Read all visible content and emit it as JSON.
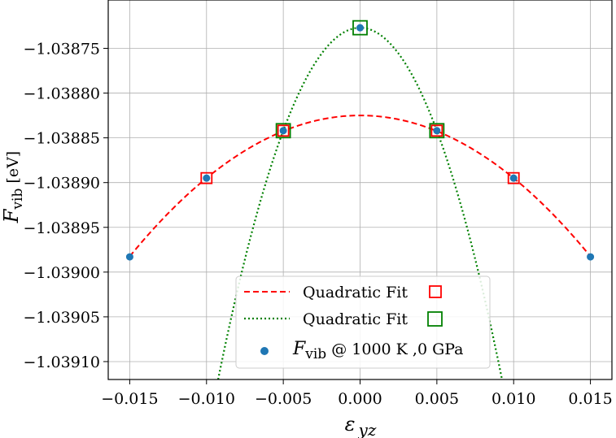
{
  "chart_data": {
    "type": "scatter",
    "xlabel": "ε yz",
    "ylabel": "F vib [eV]",
    "xlim": [
      -0.0164,
      0.0164
    ],
    "ylim": [
      -1.03912,
      -1.038696
    ],
    "x_ticks": [
      -0.015,
      -0.01,
      -0.005,
      0.0,
      0.005,
      0.01,
      0.015
    ],
    "x_tick_labels": [
      "−0.015",
      "−0.010",
      "−0.005",
      "0.000",
      "0.005",
      "0.010",
      "0.015"
    ],
    "y_ticks": [
      -1.03875,
      -1.0388,
      -1.03885,
      -1.0389,
      -1.03895,
      -1.039,
      -1.03905,
      -1.0391
    ],
    "y_tick_labels": [
      "−1.03875",
      "−1.03880",
      "−1.03885",
      "−1.03890",
      "−1.03895",
      "−1.03900",
      "−1.03905",
      "−1.03910"
    ],
    "grid": true,
    "legend_position": "lower-center",
    "points": {
      "x": [
        -0.015,
        -0.01,
        -0.005,
        0.0,
        0.005,
        0.01,
        0.015
      ],
      "y": [
        -1.038983,
        -1.038895,
        -1.038842,
        -1.038727,
        -1.038842,
        -1.038895,
        -1.038983
      ],
      "color": "#1f77b4"
    },
    "fit_red": {
      "a0": -1.038825,
      "a2": -0.7,
      "x_range": [
        -0.015,
        0.015
      ],
      "marker_x": [
        -0.01,
        -0.005,
        0.005,
        0.01
      ],
      "color": "#ff0000",
      "style": "dashed"
    },
    "fit_green": {
      "a0": -1.038727,
      "a2": -4.6,
      "marker_x": [
        -0.005,
        0.0,
        0.005
      ],
      "color": "#008000",
      "style": "dotted"
    },
    "legend": [
      {
        "label": "Quadratic Fit",
        "line_color": "#ff0000",
        "line_style": "dashed",
        "marker_color": "#ff0000"
      },
      {
        "label": "Quadratic Fit",
        "line_color": "#008000",
        "line_style": "dotted",
        "marker_color": "#008000"
      },
      {
        "label_main": "F",
        "label_sub": "vib",
        "label_rest": " @ 1000 K ,0 GPa",
        "marker_color": "#1f77b4"
      }
    ]
  }
}
